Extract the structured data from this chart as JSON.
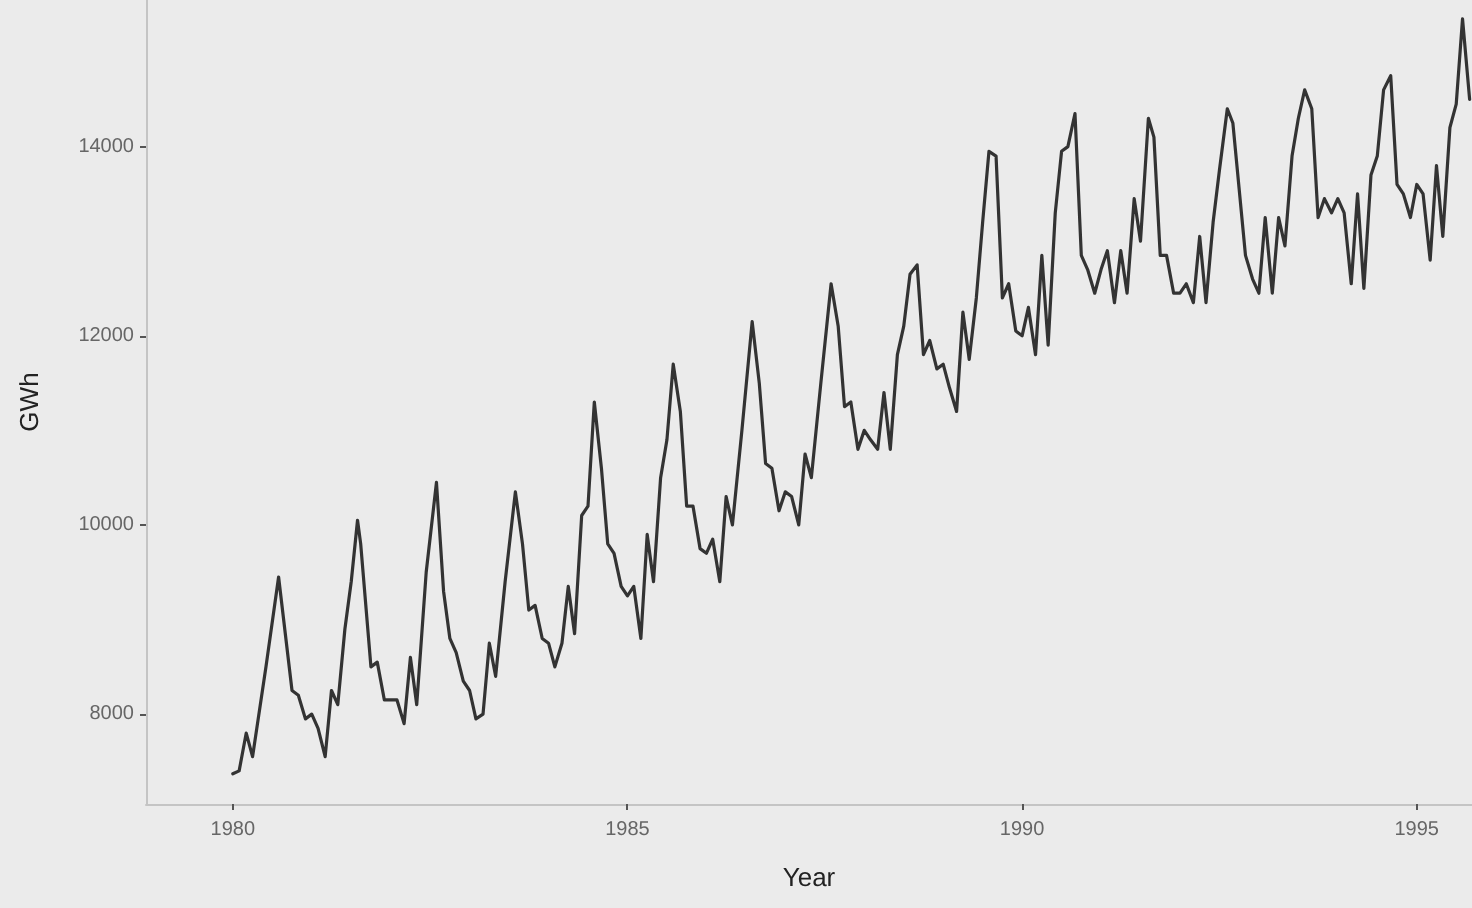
{
  "chart_data": {
    "type": "line",
    "xlabel": "Year",
    "ylabel": "GWh",
    "xlim": [
      1978.9,
      1995.7
    ],
    "ylim": [
      7050,
      15550
    ],
    "xticks": [
      1980,
      1985,
      1990,
      1995
    ],
    "yticks": [
      8000,
      10000,
      12000,
      14000
    ],
    "grid": false,
    "marker": "none",
    "line_style": "solid",
    "series": [
      {
        "color": "#333333",
        "x": [
          1980.0,
          1980.08,
          1980.17,
          1980.25,
          1980.42,
          1980.58,
          1980.75,
          1980.83,
          1980.92,
          1981.0,
          1981.08,
          1981.17,
          1981.25,
          1981.33,
          1981.42,
          1981.5,
          1981.58,
          1981.62,
          1981.75,
          1981.83,
          1981.92,
          1982.0,
          1982.08,
          1982.17,
          1982.25,
          1982.33,
          1982.45,
          1982.58,
          1982.67,
          1982.75,
          1982.83,
          1982.92,
          1983.0,
          1983.08,
          1983.17,
          1983.25,
          1983.33,
          1983.45,
          1983.58,
          1983.67,
          1983.75,
          1983.83,
          1983.92,
          1984.0,
          1984.08,
          1984.17,
          1984.25,
          1984.33,
          1984.42,
          1984.5,
          1984.58,
          1984.67,
          1984.75,
          1984.83,
          1984.92,
          1985.0,
          1985.08,
          1985.17,
          1985.25,
          1985.33,
          1985.42,
          1985.5,
          1985.58,
          1985.67,
          1985.75,
          1985.83,
          1985.92,
          1986.0,
          1986.08,
          1986.17,
          1986.25,
          1986.33,
          1986.45,
          1986.58,
          1986.67,
          1986.75,
          1986.83,
          1986.92,
          1987.0,
          1987.08,
          1987.17,
          1987.25,
          1987.33,
          1987.45,
          1987.58,
          1987.67,
          1987.75,
          1987.83,
          1987.92,
          1988.0,
          1988.08,
          1988.17,
          1988.25,
          1988.33,
          1988.42,
          1988.5,
          1988.58,
          1988.67,
          1988.75,
          1988.83,
          1988.92,
          1989.0,
          1989.08,
          1989.17,
          1989.25,
          1989.33,
          1989.42,
          1989.5,
          1989.58,
          1989.67,
          1989.75,
          1989.83,
          1989.92,
          1990.0,
          1990.08,
          1990.17,
          1990.25,
          1990.33,
          1990.42,
          1990.5,
          1990.58,
          1990.67,
          1990.75,
          1990.83,
          1990.92,
          1991.0,
          1991.08,
          1991.17,
          1991.25,
          1991.33,
          1991.42,
          1991.5,
          1991.6,
          1991.67,
          1991.75,
          1991.83,
          1991.92,
          1992.0,
          1992.08,
          1992.17,
          1992.25,
          1992.33,
          1992.42,
          1992.5,
          1992.6,
          1992.67,
          1992.75,
          1992.83,
          1992.92,
          1993.0,
          1993.08,
          1993.17,
          1993.25,
          1993.33,
          1993.42,
          1993.5,
          1993.58,
          1993.67,
          1993.75,
          1993.83,
          1993.92,
          1994.0,
          1994.08,
          1994.17,
          1994.25,
          1994.33,
          1994.42,
          1994.5,
          1994.58,
          1994.67,
          1994.75,
          1994.83,
          1994.92,
          1995.0,
          1995.08,
          1995.17,
          1995.25,
          1995.33,
          1995.42,
          1995.5,
          1995.58,
          1995.67
        ],
        "values": [
          7370,
          7400,
          7800,
          7550,
          8500,
          9450,
          8250,
          8200,
          7950,
          8000,
          7850,
          7550,
          8250,
          8100,
          8900,
          9400,
          10050,
          9800,
          8500,
          8550,
          8150,
          8150,
          8150,
          7900,
          8600,
          8100,
          9500,
          10450,
          9300,
          8800,
          8650,
          8350,
          8250,
          7950,
          8000,
          8750,
          8400,
          9400,
          10350,
          9800,
          9100,
          9150,
          8800,
          8750,
          8500,
          8750,
          9350,
          8850,
          10100,
          10200,
          11300,
          10600,
          9800,
          9700,
          9350,
          9250,
          9350,
          8800,
          9900,
          9400,
          10500,
          10900,
          11700,
          11200,
          10200,
          10200,
          9750,
          9700,
          9850,
          9400,
          10300,
          10000,
          11000,
          12150,
          11500,
          10650,
          10600,
          10150,
          10350,
          10300,
          10000,
          10750,
          10500,
          11500,
          12550,
          12100,
          11250,
          11300,
          10800,
          11000,
          10900,
          10800,
          11400,
          10800,
          11800,
          12100,
          12650,
          12750,
          11800,
          11950,
          11650,
          11700,
          11450,
          11200,
          12250,
          11750,
          12400,
          13200,
          13950,
          13900,
          12400,
          12550,
          12050,
          12000,
          12300,
          11800,
          12850,
          11900,
          13300,
          13950,
          14000,
          14350,
          12850,
          12700,
          12450,
          12700,
          12900,
          12350,
          12900,
          12450,
          13450,
          13000,
          14300,
          14100,
          12850,
          12850,
          12450,
          12450,
          12550,
          12350,
          13050,
          12350,
          13200,
          13750,
          14400,
          14250,
          13550,
          12850,
          12600,
          12450,
          13250,
          12450,
          13250,
          12950,
          13900,
          14300,
          14600,
          14400,
          13250,
          13450,
          13300,
          13450,
          13300,
          12550,
          13500,
          12500,
          13700,
          13900,
          14600,
          14750,
          13600,
          13500,
          13250,
          13600,
          13500,
          12800,
          13800,
          13050,
          14200,
          14450,
          15350,
          14500
        ]
      }
    ]
  }
}
